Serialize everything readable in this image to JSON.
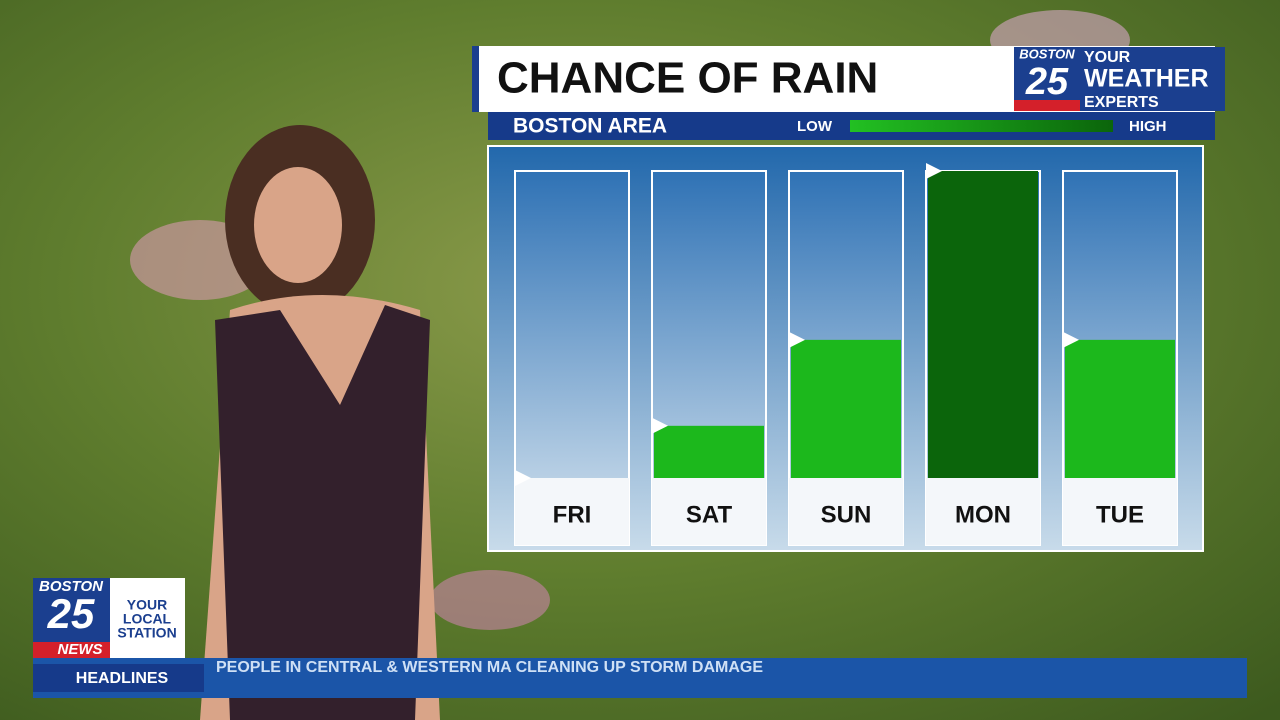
{
  "header": {
    "title": "CHANCE OF RAIN",
    "subtitle": "BOSTON AREA",
    "legend_low": "LOW",
    "legend_high": "HIGH"
  },
  "weather_logo": {
    "station": "BOSTON",
    "number": "25",
    "line1": "YOUR",
    "line2": "WEATHER",
    "line3": "EXPERTS"
  },
  "chart_data": {
    "type": "bar",
    "categories": [
      "FRI",
      "SAT",
      "SUN",
      "MON",
      "TUE"
    ],
    "values": [
      0,
      17,
      45,
      100,
      45
    ],
    "colors": [
      "#1cb81c",
      "#1cb81c",
      "#1cb81c",
      "#0b650b",
      "#1cb81c"
    ],
    "ylim": [
      0,
      100
    ]
  },
  "news_logo": {
    "station": "BOSTON",
    "number": "25",
    "brand": "NEWS",
    "line1": "YOUR",
    "line2": "LOCAL",
    "line3": "STATION"
  },
  "ticker": {
    "label": "HEADLINES",
    "text": "PEOPLE IN CENTRAL & WESTERN MA CLEANING UP STORM DAMAGE"
  }
}
